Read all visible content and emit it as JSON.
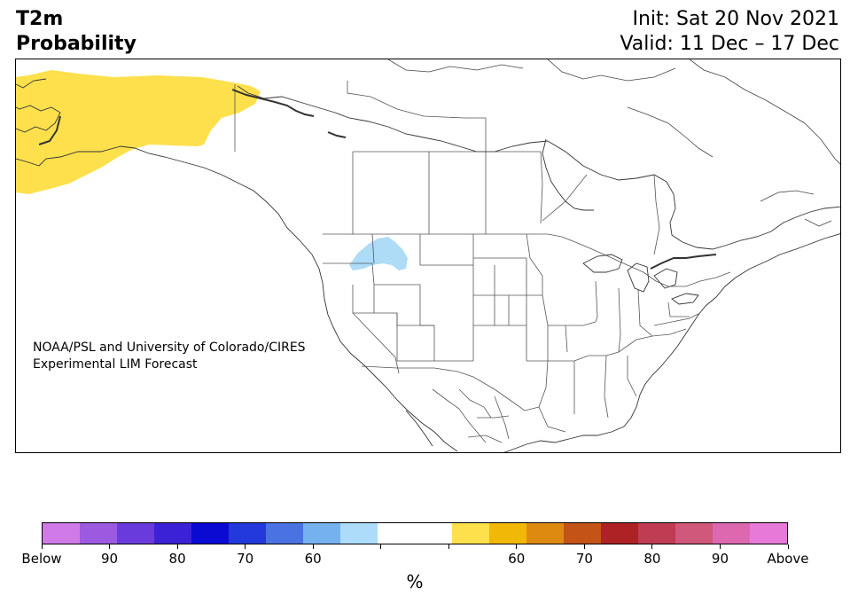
{
  "header": {
    "title_line1": "T2m",
    "title_line2": "Probability",
    "init": "Init: Sat 20 Nov 2021",
    "valid": "Valid: 11 Dec – 17 Dec"
  },
  "credit": {
    "line1": "NOAA/PSL and University of Colorado/CIRES",
    "line2": "Experimental LIM Forecast"
  },
  "map": {
    "region": "North America",
    "highlights": [
      {
        "area": "Alaska and western Yukon",
        "category": "Above 60",
        "color": "#fde04c"
      },
      {
        "area": "Northern Rockies (Idaho / Montana border)",
        "category": "Below 60",
        "color": "#aedcf7"
      }
    ]
  },
  "colorbar": {
    "colors": [
      "#d07ae8",
      "#9b5ae0",
      "#6a3bdc",
      "#3c22d6",
      "#0a0ad2",
      "#2339dc",
      "#4a72e2",
      "#76b1ef",
      "#acdcf9",
      "#ffffff",
      "#ffffff",
      "#fde04c",
      "#f2b807",
      "#de8a10",
      "#c45317",
      "#ae2124",
      "#bf3c52",
      "#d0587a",
      "#de68b0",
      "#e77ad8"
    ],
    "tick_labels": [
      "Below",
      "90",
      "80",
      "70",
      "60",
      "",
      "",
      "60",
      "70",
      "80",
      "90",
      "Above"
    ],
    "unit": "%"
  }
}
